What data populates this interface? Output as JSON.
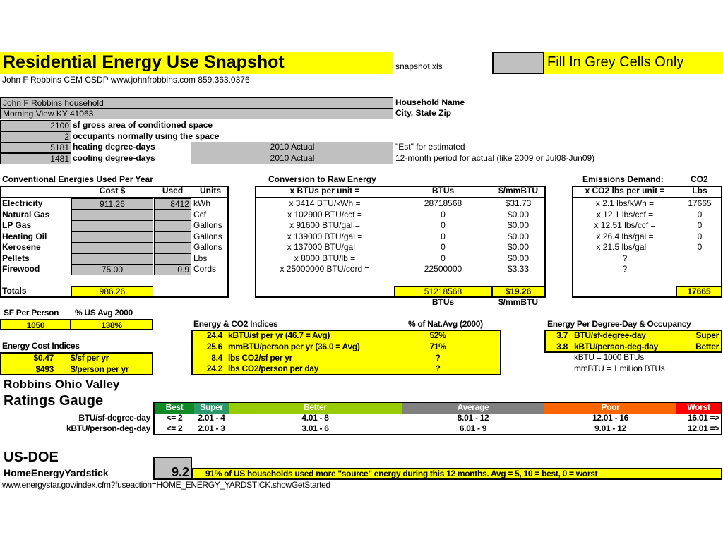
{
  "header": {
    "title": "Residential Energy Use Snapshot",
    "filename": "snapshot.xls",
    "fill_note": "Fill In Grey Cells Only",
    "author_line": "John F Robbins  CEM  CSDP   www.johnfrobbins.com   859.363.0376"
  },
  "household": {
    "name": "John F Robbins household",
    "name_label": "Household Name",
    "city": "Morning View KY  41063",
    "city_label": "City, State Zip",
    "rows": [
      {
        "value": "2100",
        "label": "sf gross area of conditioned space",
        "note": "",
        "hint": ""
      },
      {
        "value": "2",
        "label": "occupants normally using the space",
        "note": "",
        "hint": ""
      },
      {
        "value": "5181",
        "label": "heating degree-days",
        "note": "2010 Actual",
        "hint": "\"Est\" for estimated"
      },
      {
        "value": "1481",
        "label": "cooling degree-days",
        "note": "2010 Actual",
        "hint": "12-month period for actual (like 2009 or Jul08-Jun09)"
      }
    ]
  },
  "energies": {
    "title": "Conventional Energies Used Per Year",
    "headers": [
      "Cost $",
      "Used",
      "Units"
    ],
    "rows": [
      {
        "name": "Electricity",
        "cost": "911.26",
        "used": "8412",
        "unit": "kWh"
      },
      {
        "name": "Natural Gas",
        "cost": "",
        "used": "",
        "unit": "Ccf"
      },
      {
        "name": "LP Gas",
        "cost": "",
        "used": "",
        "unit": "Gallons"
      },
      {
        "name": "Heating Oil",
        "cost": "",
        "used": "",
        "unit": "Gallons"
      },
      {
        "name": "Kerosene",
        "cost": "",
        "used": "",
        "unit": "Gallons"
      },
      {
        "name": "Pellets",
        "cost": "",
        "used": "",
        "unit": "Lbs"
      },
      {
        "name": "Firewood",
        "cost": "75.00",
        "used": "0.9",
        "unit": "Cords"
      }
    ],
    "totals_label": "Totals",
    "totals_cost": "986.26"
  },
  "conversion": {
    "title": "Conversion to Raw Energy",
    "headers": [
      "x BTUs per unit =",
      "BTUs",
      "$/mmBTU"
    ],
    "rows": [
      {
        "factor": "x 3414 BTU/kWh =",
        "btus": "28718568",
        "cost": "$31.73"
      },
      {
        "factor": "x 102900 BTU/ccf =",
        "btus": "0",
        "cost": "$0.00"
      },
      {
        "factor": "x 91600 BTU/gal =",
        "btus": "0",
        "cost": "$0.00"
      },
      {
        "factor": "x 139000 BTU/gal =",
        "btus": "0",
        "cost": "$0.00"
      },
      {
        "factor": "x 137000 BTU/gal =",
        "btus": "0",
        "cost": "$0.00"
      },
      {
        "factor": "x 8000 BTU/lb =",
        "btus": "0",
        "cost": "$0.00"
      },
      {
        "factor": "x 25000000 BTU/cord =",
        "btus": "22500000",
        "cost": "$3.33"
      }
    ],
    "total_btus": "51218568",
    "total_cost": "$19.26",
    "footer": [
      "BTUs",
      "$/mmBTU"
    ]
  },
  "emissions": {
    "title": "Emissions Demand:",
    "title2": "CO2",
    "headers": [
      "x CO2 lbs per unit =",
      "Lbs"
    ],
    "rows": [
      {
        "factor": "x 2.1 lbs/kWh =",
        "lbs": "17665"
      },
      {
        "factor": "x 12.1 lbs/ccf =",
        "lbs": "0"
      },
      {
        "factor": "x 12.51 lbs/ccf =",
        "lbs": "0"
      },
      {
        "factor": "x 26.4 lbs/gal =",
        "lbs": "0"
      },
      {
        "factor": "x 21.5 lbs/gal =",
        "lbs": "0"
      },
      {
        "factor": "?",
        "lbs": ""
      },
      {
        "factor": "?",
        "lbs": ""
      }
    ],
    "total": "17665"
  },
  "sf_person": {
    "headers": [
      "SF Per Person",
      "% US Avg 2000"
    ],
    "values": [
      "1050",
      "138%"
    ]
  },
  "cost_indices": {
    "title": "Energy Cost Indices",
    "rows": [
      {
        "value": "$0.47",
        "label": "$/sf per yr"
      },
      {
        "value": "$493",
        "label": "$/person per yr"
      }
    ]
  },
  "co2_indices": {
    "title": "Energy & CO2 Indices",
    "pct_header": "% of Nat.Avg (2000)",
    "rows": [
      {
        "value": "24.4",
        "label": "kBTU/sf per yr (46.7 = Avg)",
        "pct": "52%"
      },
      {
        "value": "25.6",
        "label": "mmBTU/person per yr (36.0 = Avg)",
        "pct": "71%"
      },
      {
        "value": "8.4",
        "label": "lbs CO2/sf per yr",
        "pct": "?"
      },
      {
        "value": "24.2",
        "label": "lbs CO2/person per day",
        "pct": "?"
      }
    ]
  },
  "degree_day": {
    "title": "Energy Per Degree-Day & Occupancy",
    "rows": [
      {
        "value": "3.7",
        "label": "BTU/sf-degree-day",
        "rating": "Super"
      },
      {
        "value": "3.8",
        "label": "kBTU/person-deg-day",
        "rating": "Better"
      }
    ],
    "notes": [
      "kBTU = 1000 BTUs",
      "mmBTU = 1 million BTUs"
    ]
  },
  "gauge": {
    "title1": "Robbins Ohio Valley",
    "title2": "Ratings Gauge",
    "levels": [
      {
        "label": "Best",
        "color": "#0f8a24"
      },
      {
        "label": "Super",
        "color": "#2a9a6a"
      },
      {
        "label": "Better",
        "color": "#99cc00"
      },
      {
        "label": "Average",
        "color": "#808080"
      },
      {
        "label": "Poor",
        "color": "#ff6600"
      },
      {
        "label": "Worst",
        "color": "#ff0000"
      }
    ],
    "rows": [
      {
        "label": "BTU/sf-degree-day",
        "ranges": [
          "<= 2",
          "2.01 - 4",
          "4.01 - 8",
          "8.01 - 12",
          "12.01 - 16",
          "16.01 =>"
        ]
      },
      {
        "label": "kBTU/person-deg-day",
        "ranges": [
          "<= 2",
          "2.01 - 3",
          "3.01 - 6",
          "6.01 - 9",
          "9.01 - 12",
          "12.01 =>"
        ]
      }
    ]
  },
  "yardstick": {
    "title1": "US-DOE",
    "title2": "HomeEnergyYardstick",
    "score": "9.2",
    "message": "91% of US households used more \"source\" energy during this 12 months.  Avg = 5, 10 = best, 0 = worst",
    "url": "www.energystar.gov/index.cfm?fuseaction=HOME_ENERGY_YARDSTICK.showGetStarted"
  }
}
